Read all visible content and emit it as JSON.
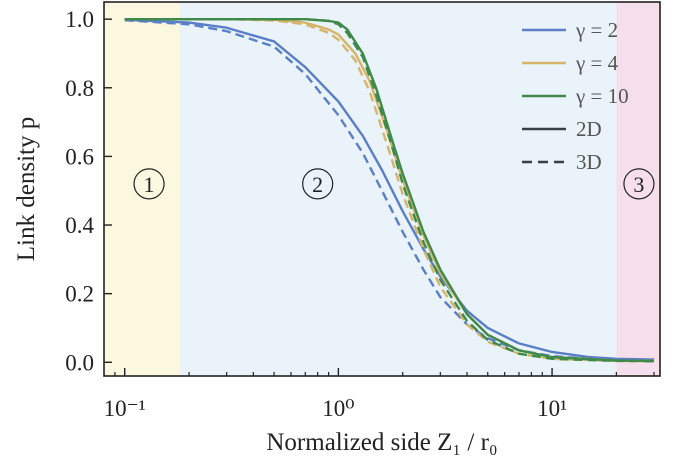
{
  "chart_data": {
    "type": "line",
    "title": "",
    "xlabel": "Normalized side Z₁ / r₀",
    "ylabel": "Link density p",
    "x_scale": "log",
    "xlim": [
      0.08,
      32
    ],
    "ylim": [
      -0.04,
      1.05
    ],
    "x_ticks": [
      {
        "value": 0.1,
        "label": "10⁻¹"
      },
      {
        "value": 1,
        "label": "10⁰"
      },
      {
        "value": 10,
        "label": "10¹"
      }
    ],
    "y_ticks": [
      {
        "value": 0.0,
        "label": "0.0"
      },
      {
        "value": 0.2,
        "label": "0.2"
      },
      {
        "value": 0.4,
        "label": "0.4"
      },
      {
        "value": 0.6,
        "label": "0.6"
      },
      {
        "value": 0.8,
        "label": "0.8"
      },
      {
        "value": 1.0,
        "label": "1.0"
      }
    ],
    "grid": false,
    "legend": {
      "position": "top-right",
      "entries": [
        {
          "label": "γ = 2",
          "color": "#5a7fc8",
          "style": "solid"
        },
        {
          "label": "γ = 4",
          "color": "#d4b56a",
          "style": "solid"
        },
        {
          "label": "γ = 10",
          "color": "#3f8a4a",
          "style": "solid"
        },
        {
          "label": "2D",
          "color": "#3a3f45",
          "style": "solid"
        },
        {
          "label": "3D",
          "color": "#3a3f45",
          "style": "dashed"
        }
      ]
    },
    "regions": [
      {
        "label": "1",
        "x_from": 0.08,
        "x_to": 0.18,
        "color": "#fcf8e0",
        "label_x": 0.13,
        "label_y": 0.52
      },
      {
        "label": "2",
        "x_from": 0.18,
        "x_to": 20,
        "color": "#eaf3f9",
        "label_x": 0.8,
        "label_y": 0.52
      },
      {
        "label": "3",
        "x_from": 20,
        "x_to": 32,
        "color": "#f6dfec",
        "label_x": 25.5,
        "label_y": 0.52
      }
    ],
    "series": [
      {
        "name": "γ = 2",
        "dim": "2D",
        "color": "#5a7fc8",
        "dashed": false,
        "x": [
          0.1,
          0.2,
          0.3,
          0.5,
          0.7,
          1.0,
          1.3,
          1.6,
          2.0,
          2.5,
          3.0,
          4.0,
          5.0,
          7.0,
          10,
          15,
          20,
          30
        ],
        "y": [
          0.998,
          0.99,
          0.975,
          0.935,
          0.86,
          0.76,
          0.66,
          0.56,
          0.44,
          0.33,
          0.25,
          0.15,
          0.1,
          0.055,
          0.03,
          0.015,
          0.01,
          0.008
        ]
      },
      {
        "name": "γ = 2",
        "dim": "3D",
        "color": "#5a7fc8",
        "dashed": true,
        "x": [
          0.1,
          0.2,
          0.3,
          0.5,
          0.7,
          1.0,
          1.3,
          1.6,
          2.0,
          2.5,
          3.0,
          4.0,
          5.0,
          7.0,
          10,
          15,
          20,
          30
        ],
        "y": [
          0.997,
          0.985,
          0.965,
          0.92,
          0.84,
          0.72,
          0.61,
          0.5,
          0.38,
          0.27,
          0.19,
          0.11,
          0.07,
          0.035,
          0.018,
          0.01,
          0.007,
          0.006
        ]
      },
      {
        "name": "γ = 4",
        "dim": "2D",
        "color": "#d4b56a",
        "dashed": false,
        "x": [
          0.1,
          0.3,
          0.5,
          0.7,
          0.9,
          1.0,
          1.2,
          1.4,
          1.7,
          2.0,
          2.5,
          3.0,
          4.0,
          5.0,
          7.0,
          10,
          20,
          30
        ],
        "y": [
          1.0,
          1.0,
          0.998,
          0.99,
          0.97,
          0.955,
          0.9,
          0.82,
          0.67,
          0.53,
          0.37,
          0.26,
          0.14,
          0.08,
          0.035,
          0.015,
          0.005,
          0.004
        ]
      },
      {
        "name": "γ = 4",
        "dim": "3D",
        "color": "#d4b56a",
        "dashed": true,
        "x": [
          0.1,
          0.3,
          0.5,
          0.7,
          0.9,
          1.0,
          1.2,
          1.4,
          1.7,
          2.0,
          2.5,
          3.0,
          4.0,
          5.0,
          7.0,
          10,
          20,
          30
        ],
        "y": [
          1.0,
          1.0,
          0.996,
          0.985,
          0.96,
          0.94,
          0.88,
          0.79,
          0.63,
          0.49,
          0.33,
          0.22,
          0.11,
          0.06,
          0.025,
          0.01,
          0.004,
          0.003
        ]
      },
      {
        "name": "γ = 10",
        "dim": "2D",
        "color": "#3f8a4a",
        "dashed": false,
        "x": [
          0.1,
          0.3,
          0.5,
          0.7,
          0.9,
          1.0,
          1.1,
          1.3,
          1.5,
          1.8,
          2.0,
          2.5,
          3.0,
          4.0,
          5.0,
          7.0,
          10,
          20,
          30
        ],
        "y": [
          1.0,
          1.0,
          1.0,
          1.0,
          0.995,
          0.99,
          0.97,
          0.9,
          0.8,
          0.64,
          0.55,
          0.38,
          0.27,
          0.14,
          0.08,
          0.035,
          0.015,
          0.005,
          0.004
        ]
      },
      {
        "name": "γ = 10",
        "dim": "3D",
        "color": "#3f8a4a",
        "dashed": true,
        "x": [
          0.1,
          0.3,
          0.5,
          0.7,
          0.9,
          1.0,
          1.1,
          1.3,
          1.5,
          1.8,
          2.0,
          2.5,
          3.0,
          4.0,
          5.0,
          7.0,
          10,
          20,
          30
        ],
        "y": [
          1.0,
          1.0,
          1.0,
          1.0,
          0.995,
          0.985,
          0.96,
          0.89,
          0.78,
          0.62,
          0.52,
          0.35,
          0.24,
          0.12,
          0.065,
          0.025,
          0.01,
          0.004,
          0.003
        ]
      }
    ]
  }
}
